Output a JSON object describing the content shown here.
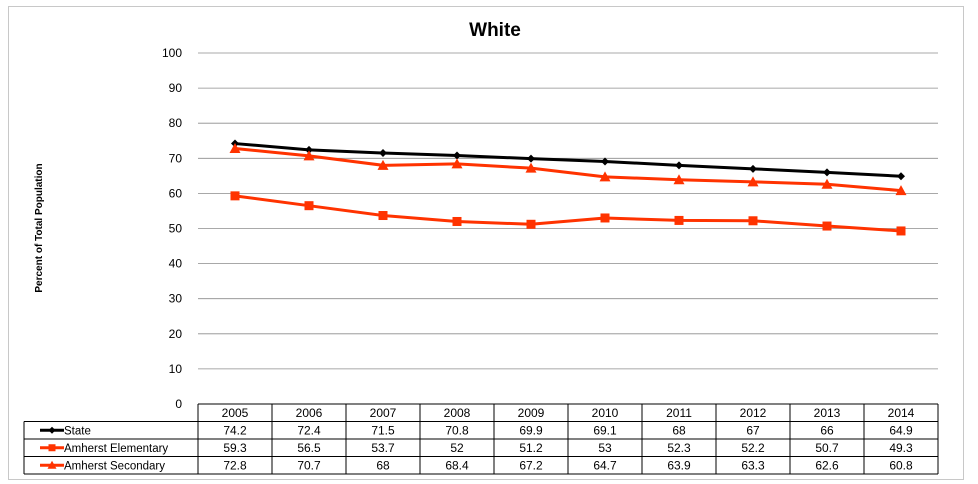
{
  "chart_data": {
    "type": "line",
    "title": "White",
    "ylabel": "Percent of Total Population",
    "xlabel": "",
    "categories": [
      "2005",
      "2006",
      "2007",
      "2008",
      "2009",
      "2010",
      "2011",
      "2012",
      "2013",
      "2014"
    ],
    "ylim": [
      0,
      100
    ],
    "yticks": [
      "0",
      "10",
      "20",
      "30",
      "40",
      "50",
      "60",
      "70",
      "80",
      "90",
      "100"
    ],
    "grid": true,
    "legend": "data-table",
    "series": [
      {
        "name": "State",
        "color": "#000000",
        "marker": "diamond",
        "values": [
          74.2,
          72.4,
          71.5,
          70.8,
          69.9,
          69.1,
          68,
          67,
          66,
          64.9
        ],
        "labels": [
          "74.2",
          "72.4",
          "71.5",
          "70.8",
          "69.9",
          "69.1",
          "68",
          "67",
          "66",
          "64.9"
        ]
      },
      {
        "name": "Amherst Elementary",
        "color": "#ff3300",
        "marker": "square",
        "values": [
          59.3,
          56.5,
          53.7,
          52,
          51.2,
          53,
          52.3,
          52.2,
          50.7,
          49.3
        ],
        "labels": [
          "59.3",
          "56.5",
          "53.7",
          "52",
          "51.2",
          "53",
          "52.3",
          "52.2",
          "50.7",
          "49.3"
        ]
      },
      {
        "name": "Amherst Secondary",
        "color": "#ff3300",
        "marker": "triangle",
        "values": [
          72.8,
          70.7,
          68,
          68.4,
          67.2,
          64.7,
          63.9,
          63.3,
          62.6,
          60.8
        ],
        "labels": [
          "72.8",
          "70.7",
          "68",
          "68.4",
          "67.2",
          "64.7",
          "63.9",
          "63.3",
          "62.6",
          "60.8"
        ]
      }
    ]
  }
}
